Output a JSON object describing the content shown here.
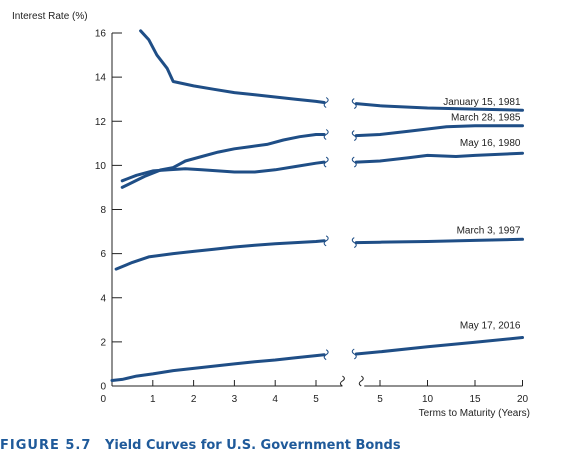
{
  "caption": {
    "figure_number": "FIGURE 5.7",
    "text": "Yield Curves for U.S. Government Bonds"
  },
  "colors": {
    "series": "#1f4e86",
    "axis": "#222222",
    "caption": "#1f5a9a"
  },
  "chart_data": {
    "type": "line",
    "title": "",
    "ylabel": "Interest Rate (%)",
    "xlabel": "Terms to Maturity (Years)",
    "ylim": [
      0,
      16
    ],
    "y_ticks": [
      0,
      2,
      4,
      6,
      8,
      10,
      12,
      14,
      16
    ],
    "grid": false,
    "x_axis_break": true,
    "x_segments": [
      {
        "range": [
          0,
          5.5
        ],
        "ticks": [
          0,
          1,
          2,
          3,
          4,
          5
        ]
      },
      {
        "range": [
          2.5,
          20
        ],
        "ticks": [
          5,
          10,
          15,
          20
        ]
      }
    ],
    "series": [
      {
        "name": "January 15, 1981",
        "segment1": [
          [
            0.7,
            16.1
          ],
          [
            0.9,
            15.7
          ],
          [
            1.1,
            15.0
          ],
          [
            1.35,
            14.4
          ],
          [
            1.5,
            13.8
          ],
          [
            2.0,
            13.6
          ],
          [
            2.5,
            13.45
          ],
          [
            3.0,
            13.3
          ],
          [
            3.5,
            13.2
          ],
          [
            4.0,
            13.1
          ],
          [
            4.5,
            13.0
          ],
          [
            5.0,
            12.9
          ],
          [
            5.2,
            12.85
          ]
        ],
        "segment2": [
          [
            2.5,
            12.8
          ],
          [
            5,
            12.7
          ],
          [
            10,
            12.6
          ],
          [
            15,
            12.55
          ],
          [
            20,
            12.5
          ]
        ]
      },
      {
        "name": "March 28, 1985",
        "segment1": [
          [
            0.25,
            9.0
          ],
          [
            0.8,
            9.5
          ],
          [
            1.2,
            9.8
          ],
          [
            1.5,
            9.9
          ],
          [
            1.8,
            10.2
          ],
          [
            2.2,
            10.4
          ],
          [
            2.6,
            10.6
          ],
          [
            3.0,
            10.75
          ],
          [
            3.4,
            10.85
          ],
          [
            3.8,
            10.95
          ],
          [
            4.2,
            11.15
          ],
          [
            4.6,
            11.3
          ],
          [
            5.0,
            11.4
          ],
          [
            5.2,
            11.4
          ]
        ],
        "segment2": [
          [
            2.5,
            11.35
          ],
          [
            5,
            11.4
          ],
          [
            8,
            11.55
          ],
          [
            10,
            11.65
          ],
          [
            12,
            11.75
          ],
          [
            15,
            11.8
          ],
          [
            20,
            11.8
          ]
        ]
      },
      {
        "name": "May 16, 1980",
        "segment1": [
          [
            0.25,
            9.3
          ],
          [
            0.6,
            9.55
          ],
          [
            1.0,
            9.75
          ],
          [
            1.4,
            9.8
          ],
          [
            1.8,
            9.85
          ],
          [
            2.2,
            9.8
          ],
          [
            2.6,
            9.75
          ],
          [
            3.0,
            9.7
          ],
          [
            3.5,
            9.7
          ],
          [
            4.0,
            9.8
          ],
          [
            4.5,
            9.95
          ],
          [
            5.0,
            10.1
          ],
          [
            5.2,
            10.15
          ]
        ],
        "segment2": [
          [
            2.5,
            10.15
          ],
          [
            5,
            10.2
          ],
          [
            8,
            10.35
          ],
          [
            10,
            10.45
          ],
          [
            13,
            10.4
          ],
          [
            15,
            10.45
          ],
          [
            20,
            10.55
          ]
        ]
      },
      {
        "name": "March 3, 1997",
        "segment1": [
          [
            0.1,
            5.3
          ],
          [
            0.5,
            5.6
          ],
          [
            0.9,
            5.85
          ],
          [
            1.5,
            6.0
          ],
          [
            2.0,
            6.1
          ],
          [
            2.5,
            6.2
          ],
          [
            3.0,
            6.3
          ],
          [
            3.5,
            6.38
          ],
          [
            4.0,
            6.45
          ],
          [
            4.5,
            6.5
          ],
          [
            5.0,
            6.55
          ],
          [
            5.2,
            6.58
          ]
        ],
        "segment2": [
          [
            2.5,
            6.5
          ],
          [
            5,
            6.52
          ],
          [
            10,
            6.55
          ],
          [
            15,
            6.6
          ],
          [
            20,
            6.65
          ]
        ]
      },
      {
        "name": "May 17, 2016",
        "segment1": [
          [
            0.0,
            0.25
          ],
          [
            0.25,
            0.3
          ],
          [
            0.6,
            0.45
          ],
          [
            1.0,
            0.55
          ],
          [
            1.5,
            0.7
          ],
          [
            2.0,
            0.8
          ],
          [
            2.5,
            0.9
          ],
          [
            3.0,
            1.0
          ],
          [
            3.5,
            1.1
          ],
          [
            4.0,
            1.18
          ],
          [
            4.5,
            1.28
          ],
          [
            5.0,
            1.38
          ],
          [
            5.2,
            1.42
          ]
        ],
        "segment2": [
          [
            2.5,
            1.45
          ],
          [
            5,
            1.55
          ],
          [
            10,
            1.78
          ],
          [
            15,
            1.98
          ],
          [
            20,
            2.2
          ]
        ]
      }
    ]
  }
}
